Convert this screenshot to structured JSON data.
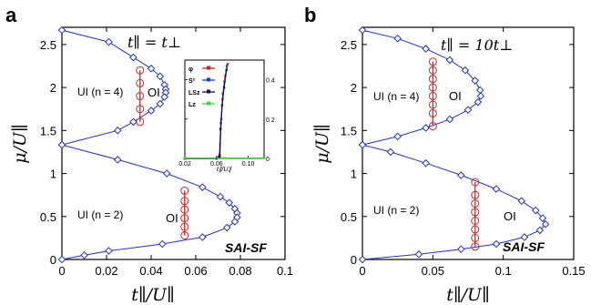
{
  "chart_data": [
    {
      "panel_label": "a",
      "type": "line",
      "condition": "t∥ = t⊥",
      "xlabel": "t∥/U∥",
      "ylabel": "μ/U∥",
      "xlim": [
        0,
        0.1
      ],
      "ylim": [
        0,
        2.7
      ],
      "xticks": [
        "0",
        "0.02",
        "0.04",
        "0.06",
        "0.08",
        "0.1"
      ],
      "yticks": [
        "0",
        "0.5",
        "1",
        "1.5",
        "2",
        "2.5"
      ],
      "phase_labels": [
        "UI (n = 4)",
        "OI",
        "UI (n = 2)",
        "OI"
      ],
      "annotation": "SAI-SF",
      "boundary_upper": [
        [
          0,
          2.667
        ],
        [
          0.021,
          2.53
        ],
        [
          0.032,
          2.35
        ],
        [
          0.04,
          2.22
        ],
        [
          0.044,
          2.13
        ],
        [
          0.046,
          2.03
        ],
        [
          0.0465,
          1.98
        ],
        [
          0.0465,
          1.94
        ],
        [
          0.046,
          1.89
        ],
        [
          0.044,
          1.81
        ],
        [
          0.04,
          1.73
        ],
        [
          0.032,
          1.6
        ],
        [
          0.025,
          1.5
        ],
        [
          0.0,
          1.333
        ]
      ],
      "boundary_lower": [
        [
          0,
          1.333
        ],
        [
          0.025,
          1.16
        ],
        [
          0.047,
          1.0
        ],
        [
          0.063,
          0.84
        ],
        [
          0.071,
          0.73
        ],
        [
          0.075,
          0.66
        ],
        [
          0.0775,
          0.59
        ],
        [
          0.0785,
          0.54
        ],
        [
          0.0785,
          0.49
        ],
        [
          0.0775,
          0.44
        ],
        [
          0.074,
          0.37
        ],
        [
          0.063,
          0.26
        ],
        [
          0.045,
          0.18
        ],
        [
          0.021,
          0.1
        ],
        [
          0.01,
          0.05
        ],
        [
          0,
          0
        ]
      ],
      "oi_line_upper": {
        "x": 0.035,
        "y": [
          1.6,
          1.75,
          1.9,
          2.05,
          2.2
        ]
      },
      "oi_line_lower": {
        "x": 0.055,
        "y": [
          0.28,
          0.38,
          0.48,
          0.58,
          0.68,
          0.8
        ]
      },
      "inset": {
        "xlabel": "t∥/U∥",
        "xticks": [
          "0.02",
          "0.06",
          "0.10"
        ],
        "xlim": [
          0.02,
          0.12
        ],
        "yticks": [
          "0",
          "0.2",
          "0.4"
        ],
        "ylim": [
          0,
          0.5
        ],
        "legend": [
          "φ",
          "S²",
          "LSz",
          "Lz"
        ],
        "series_colors": [
          "#cc2222",
          "#1a3fd0",
          "#101060",
          "#33dd33"
        ]
      }
    },
    {
      "panel_label": "b",
      "type": "line",
      "condition": "t∥ = 10t⊥",
      "xlabel": "t∥/U∥",
      "ylabel": "μ/U∥",
      "xlim": [
        0,
        0.15
      ],
      "ylim": [
        0,
        2.7
      ],
      "xticks": [
        "0",
        "0.05",
        "0.1",
        "0.15"
      ],
      "yticks": [
        "0",
        "0.5",
        "1",
        "1.5",
        "2",
        "2.5"
      ],
      "phase_labels": [
        "UI (n = 4)",
        "OI",
        "UI (n = 2)",
        "OI"
      ],
      "annotation": "SAI-SF",
      "boundary_upper": [
        [
          0,
          2.667
        ],
        [
          0.025,
          2.57
        ],
        [
          0.045,
          2.45
        ],
        [
          0.062,
          2.32
        ],
        [
          0.073,
          2.2
        ],
        [
          0.08,
          2.08
        ],
        [
          0.0835,
          1.97
        ],
        [
          0.084,
          1.9
        ],
        [
          0.082,
          1.83
        ],
        [
          0.075,
          1.74
        ],
        [
          0.062,
          1.63
        ],
        [
          0.045,
          1.53
        ],
        [
          0.025,
          1.43
        ],
        [
          0,
          1.333
        ]
      ],
      "boundary_lower": [
        [
          0,
          1.333
        ],
        [
          0.02,
          1.25
        ],
        [
          0.045,
          1.12
        ],
        [
          0.07,
          0.98
        ],
        [
          0.095,
          0.82
        ],
        [
          0.113,
          0.68
        ],
        [
          0.123,
          0.57
        ],
        [
          0.128,
          0.48
        ],
        [
          0.13,
          0.41
        ],
        [
          0.126,
          0.34
        ],
        [
          0.115,
          0.26
        ],
        [
          0.095,
          0.18
        ],
        [
          0.07,
          0.12
        ],
        [
          0.04,
          0.06
        ],
        [
          0,
          0
        ]
      ],
      "oi_line_upper": {
        "x": 0.05,
        "y": [
          1.55,
          1.7,
          1.8,
          1.9,
          2.0,
          2.1,
          2.2,
          2.3
        ]
      },
      "oi_line_lower": {
        "x": 0.08,
        "y": [
          0.15,
          0.25,
          0.35,
          0.45,
          0.55,
          0.65,
          0.75,
          0.9
        ]
      }
    }
  ],
  "colors": {
    "line": "#2233cc",
    "marker_blue": "#2233cc",
    "marker_red": "#dd2222"
  }
}
